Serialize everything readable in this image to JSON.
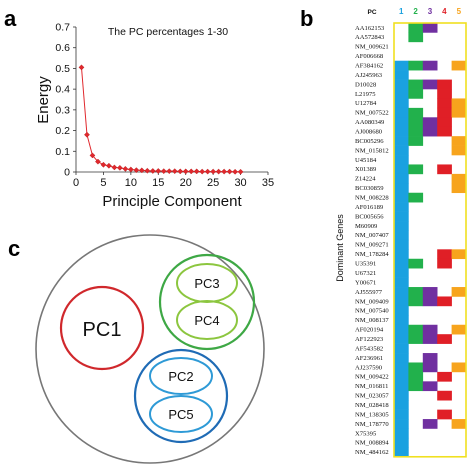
{
  "panel_labels": {
    "a": "a",
    "b": "b",
    "c": "c"
  },
  "chart_data": [
    {
      "type": "line",
      "title": "The PC percentages 1-30",
      "xlabel": "Principle Component",
      "ylabel": "Energy",
      "xlim": [
        0,
        35
      ],
      "ylim": [
        0,
        0.7
      ],
      "xticks": [
        "0",
        "5",
        "10",
        "15",
        "20",
        "25",
        "30",
        "35"
      ],
      "yticks": [
        "0",
        "0.1",
        "0.2",
        "0.3",
        "0.4",
        "0.5",
        "0.6",
        "0.7"
      ],
      "grid": false,
      "x": [
        1,
        2,
        3,
        4,
        5,
        6,
        7,
        8,
        9,
        10,
        11,
        12,
        13,
        14,
        15,
        16,
        17,
        18,
        19,
        20,
        21,
        22,
        23,
        24,
        25,
        26,
        27,
        28,
        29,
        30
      ],
      "values": [
        0.505,
        0.18,
        0.08,
        0.05,
        0.035,
        0.03,
        0.022,
        0.02,
        0.015,
        0.012,
        0.009,
        0.008,
        0.006,
        0.005,
        0.005,
        0.004,
        0.004,
        0.004,
        0.003,
        0.003,
        0.003,
        0.003,
        0.002,
        0.002,
        0.002,
        0.002,
        0.002,
        0.002,
        0.001,
        0.001
      ],
      "color": "#e0282d"
    },
    {
      "type": "heatmap",
      "header_label": "PC",
      "ylabel": "Dominant Genes",
      "columns": [
        "1",
        "2",
        "3",
        "4",
        "5"
      ],
      "column_colors": [
        "#1aa1e0",
        "#22b14c",
        "#7030a0",
        "#e01f26",
        "#f7a41d"
      ],
      "border_color": "#f0e020",
      "genes": [
        "AA162153",
        "AA572843",
        "NM_009621",
        "AF006668",
        "AF384162",
        "AJ245963",
        "D10028",
        "L21975",
        "U12784",
        "NM_007522",
        "AA080349",
        "AJ008680",
        "BC005296",
        "NM_015812",
        "U45184",
        "X01389",
        "Z14224",
        "BC030859",
        "NM_008228",
        "AF016189",
        "BC005656",
        "M60909",
        "NM_007407",
        "NM_009271",
        "NM_178284",
        "U35391",
        "U67321",
        "Y00671",
        "AJ555977",
        "NM_009409",
        "NM_007540",
        "NM_008137",
        "AF020194",
        "AF122923",
        "AF543582",
        "AF236961",
        "AJ237590",
        "NM_009422",
        "NM_016811",
        "NM_023057",
        "NM_028418",
        "NM_138305",
        "NM_178770",
        "X75395",
        "NM_008894",
        "NM_484162"
      ],
      "matrix": [
        [
          0,
          1,
          1,
          0,
          0
        ],
        [
          0,
          1,
          0,
          0,
          0
        ],
        [
          0,
          0,
          0,
          0,
          0
        ],
        [
          0,
          0,
          0,
          0,
          0
        ],
        [
          1,
          1,
          1,
          0,
          1
        ],
        [
          1,
          0,
          0,
          0,
          0
        ],
        [
          1,
          1,
          1,
          1,
          0
        ],
        [
          1,
          1,
          0,
          1,
          0
        ],
        [
          1,
          0,
          0,
          1,
          1
        ],
        [
          1,
          1,
          0,
          1,
          1
        ],
        [
          1,
          1,
          1,
          1,
          0
        ],
        [
          1,
          1,
          1,
          1,
          0
        ],
        [
          1,
          1,
          0,
          0,
          1
        ],
        [
          1,
          0,
          0,
          0,
          1
        ],
        [
          1,
          0,
          0,
          0,
          0
        ],
        [
          1,
          1,
          0,
          1,
          0
        ],
        [
          1,
          0,
          0,
          0,
          1
        ],
        [
          1,
          0,
          0,
          0,
          1
        ],
        [
          1,
          1,
          0,
          0,
          0
        ],
        [
          1,
          0,
          0,
          0,
          0
        ],
        [
          1,
          0,
          0,
          0,
          0
        ],
        [
          1,
          0,
          0,
          0,
          0
        ],
        [
          1,
          0,
          0,
          0,
          0
        ],
        [
          1,
          0,
          0,
          0,
          0
        ],
        [
          1,
          0,
          0,
          1,
          1
        ],
        [
          1,
          1,
          0,
          1,
          0
        ],
        [
          1,
          0,
          0,
          0,
          0
        ],
        [
          1,
          0,
          0,
          0,
          0
        ],
        [
          1,
          1,
          1,
          0,
          1
        ],
        [
          1,
          1,
          1,
          1,
          0
        ],
        [
          1,
          0,
          0,
          0,
          0
        ],
        [
          1,
          0,
          0,
          0,
          0
        ],
        [
          1,
          1,
          1,
          0,
          1
        ],
        [
          1,
          1,
          1,
          1,
          0
        ],
        [
          1,
          0,
          0,
          0,
          0
        ],
        [
          1,
          0,
          1,
          0,
          0
        ],
        [
          1,
          1,
          1,
          0,
          1
        ],
        [
          1,
          1,
          0,
          1,
          0
        ],
        [
          1,
          1,
          1,
          0,
          0
        ],
        [
          1,
          0,
          0,
          1,
          0
        ],
        [
          1,
          0,
          0,
          0,
          0
        ],
        [
          1,
          0,
          0,
          1,
          0
        ],
        [
          1,
          0,
          1,
          0,
          1
        ],
        [
          1,
          0,
          0,
          0,
          0
        ],
        [
          1,
          0,
          0,
          0,
          0
        ],
        [
          1,
          0,
          0,
          0,
          0
        ]
      ]
    }
  ],
  "venn": {
    "circles": [
      {
        "label": "PC1",
        "color": "#d0282c"
      },
      {
        "label": "PC3",
        "color": "#8cc63f"
      },
      {
        "label": "PC4",
        "color": "#8cc63f"
      },
      {
        "label": "PC2",
        "color": "#2e9ad6"
      },
      {
        "label": "PC5",
        "color": "#2e9ad6"
      }
    ],
    "outer_color": "#777777",
    "group34_color": "#3ea845",
    "group25_color": "#1f6bb5"
  }
}
